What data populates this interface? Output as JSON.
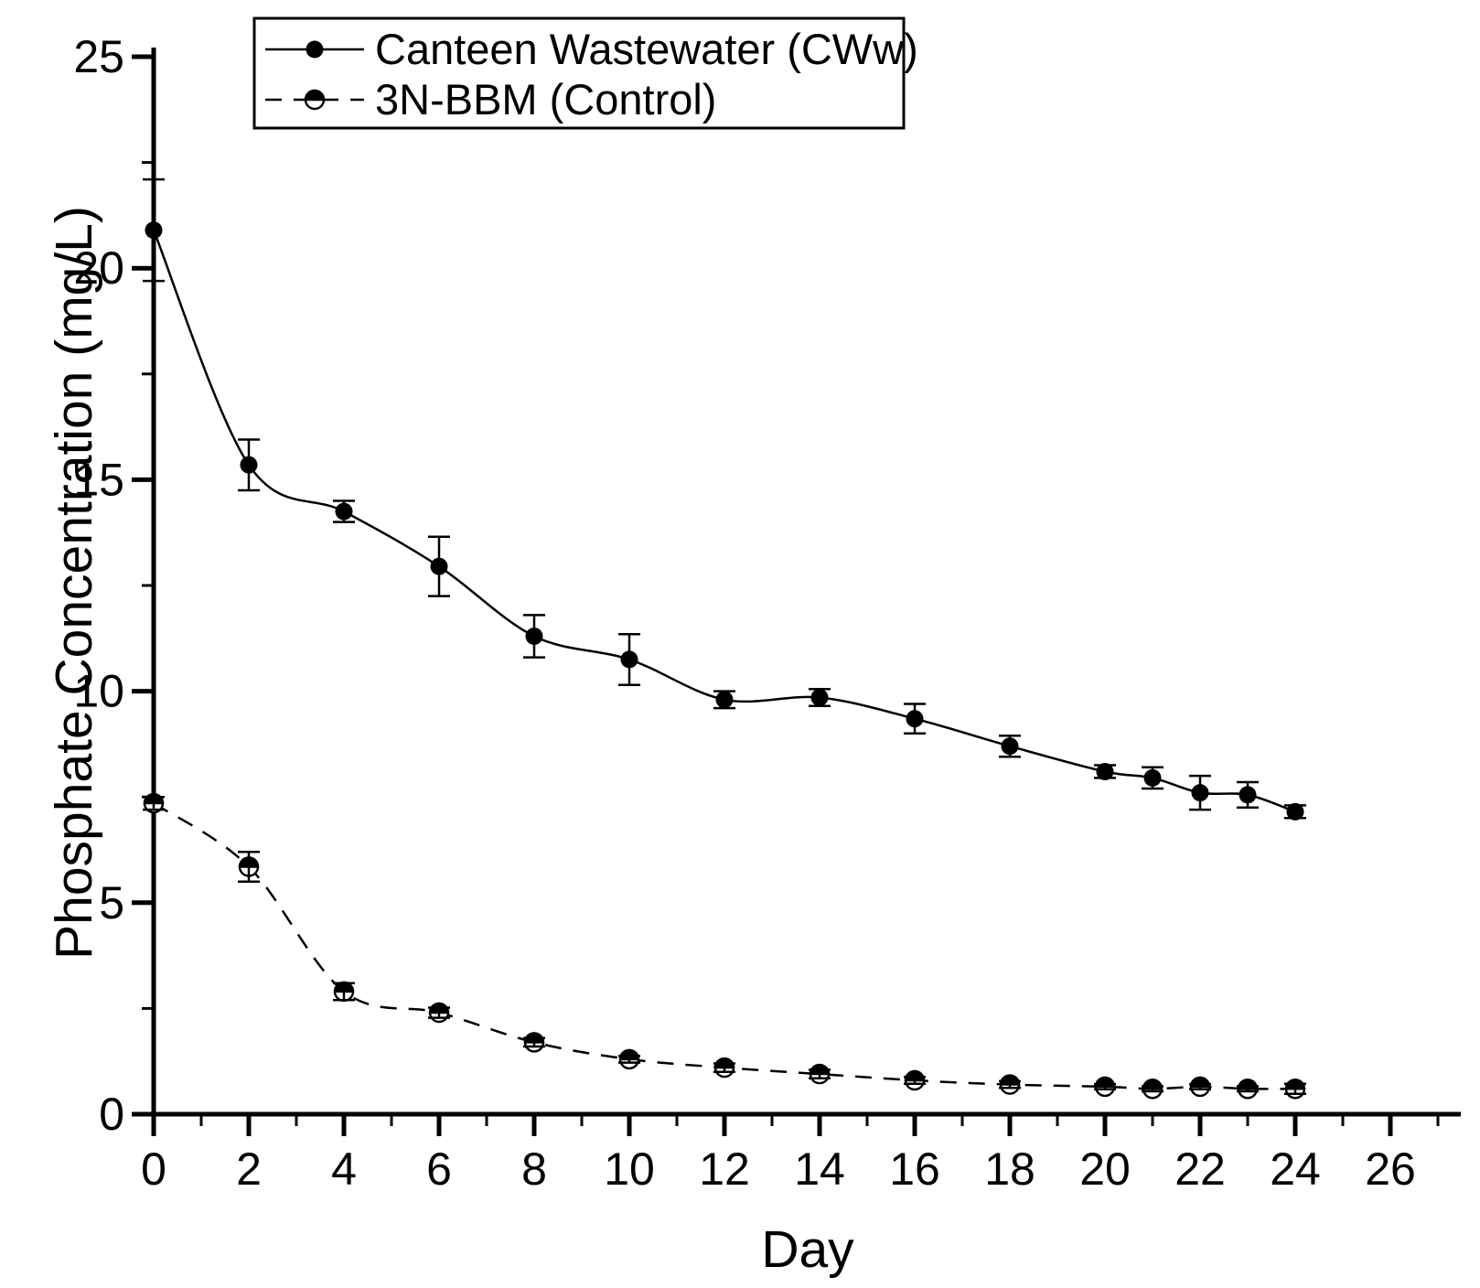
{
  "figure": {
    "background_color": "#ffffff",
    "ink_color": "#000000"
  },
  "chart_data": {
    "type": "line",
    "title": "",
    "xlabel": "Day",
    "ylabel": "Phosphate Concentration (mg/L)",
    "xlim": [
      0,
      27.5
    ],
    "ylim": [
      0,
      25.2
    ],
    "x_tick_values": [
      0,
      2,
      4,
      6,
      8,
      10,
      12,
      14,
      16,
      18,
      20,
      22,
      24,
      26
    ],
    "x_tick_labels": [
      "0",
      "2",
      "4",
      "6",
      "8",
      "10",
      "12",
      "14",
      "16",
      "18",
      "20",
      "22",
      "24",
      "26"
    ],
    "x_minor_tick_step": 1,
    "y_tick_values": [
      0,
      5,
      10,
      15,
      20,
      25
    ],
    "y_tick_labels": [
      "0",
      "5",
      "10",
      "15",
      "20",
      "25"
    ],
    "y_minor_tick_step": 2.5,
    "grid": "off",
    "legend_position": "top-left-inside",
    "x": [
      0,
      2,
      4,
      6,
      8,
      10,
      12,
      14,
      16,
      18,
      20,
      21,
      22,
      23,
      24
    ],
    "series": [
      {
        "name": "Canteen Wastewater (CWw)",
        "line_style": "solid",
        "marker": "filled-circle",
        "color": "#000000",
        "values": [
          20.9,
          15.35,
          14.25,
          12.95,
          11.3,
          10.75,
          9.8,
          9.85,
          9.35,
          8.7,
          8.1,
          7.95,
          7.6,
          7.55,
          7.15
        ],
        "error": [
          1.2,
          0.6,
          0.25,
          0.7,
          0.5,
          0.6,
          0.2,
          0.2,
          0.35,
          0.25,
          0.15,
          0.25,
          0.4,
          0.3,
          0.15
        ]
      },
      {
        "name": "3N-BBM (Control)",
        "line_style": "dashed",
        "marker": "half-filled-circle-top",
        "color": "#000000",
        "values": [
          7.35,
          5.85,
          2.9,
          2.4,
          1.7,
          1.3,
          1.1,
          0.95,
          0.8,
          0.7,
          0.65,
          0.6,
          0.65,
          0.6,
          0.6
        ],
        "error": [
          0.15,
          0.35,
          0.2,
          0.12,
          0.1,
          0.08,
          0.1,
          0.1,
          0.08,
          0.08,
          0.06,
          0.06,
          0.06,
          0.06,
          0.12
        ]
      }
    ]
  }
}
